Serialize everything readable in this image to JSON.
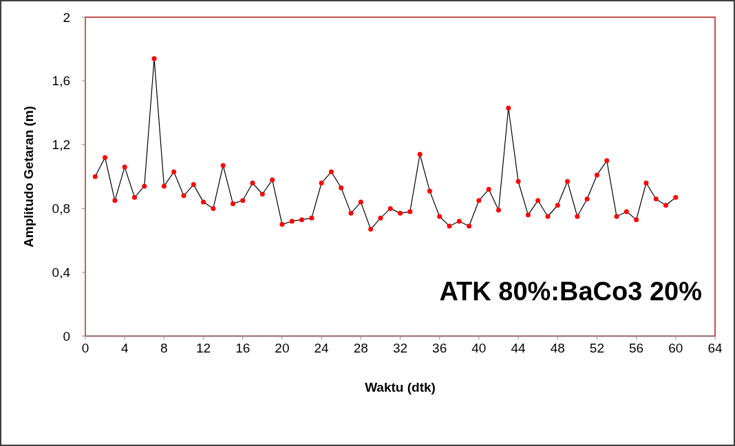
{
  "chart_data": {
    "type": "line",
    "xlabel": "Waktu (dtk)",
    "ylabel": "Amplitudo Getaran (m)",
    "annotations": [
      "ATK 80%:BaCo3 20%"
    ],
    "x": [
      1,
      2,
      3,
      4,
      5,
      6,
      7,
      8,
      9,
      10,
      11,
      12,
      13,
      14,
      15,
      16,
      17,
      18,
      19,
      20,
      21,
      22,
      23,
      24,
      25,
      26,
      27,
      28,
      29,
      30,
      31,
      32,
      33,
      34,
      35,
      36,
      37,
      38,
      39,
      40,
      41,
      42,
      43,
      44,
      45,
      46,
      47,
      48,
      49,
      50,
      51,
      52,
      53,
      54,
      55,
      56,
      57,
      58,
      59,
      60
    ],
    "series": [
      {
        "color": "#ff0000",
        "values": [
          1.0,
          1.12,
          0.85,
          1.06,
          0.87,
          0.94,
          1.74,
          0.94,
          1.03,
          0.88,
          0.95,
          0.84,
          0.8,
          1.07,
          0.83,
          0.85,
          0.96,
          0.89,
          0.98,
          0.7,
          0.72,
          0.73,
          0.74,
          0.96,
          1.03,
          0.93,
          0.77,
          0.84,
          0.67,
          0.74,
          0.8,
          0.77,
          0.78,
          1.14,
          0.91,
          0.75,
          0.69,
          0.72,
          0.69,
          0.85,
          0.92,
          0.79,
          1.43,
          0.97,
          0.76,
          0.85,
          0.75,
          0.82,
          0.97,
          0.75,
          0.86,
          1.01,
          1.1,
          0.75,
          0.78,
          0.73,
          0.96,
          0.86,
          0.82,
          0.87
        ]
      }
    ],
    "xlim": [
      0,
      64
    ],
    "xticks": [
      0,
      4,
      8,
      12,
      16,
      20,
      24,
      28,
      32,
      36,
      40,
      44,
      48,
      52,
      56,
      60,
      64
    ],
    "ylim": [
      0,
      2
    ],
    "yticks": [
      0,
      {
        "value": 0.4,
        "label": "0,4"
      },
      {
        "value": 0.8,
        "label": "0,8"
      },
      {
        "value": 1.2,
        "label": "1,2"
      },
      {
        "value": 1.6,
        "label": "1,6"
      },
      2
    ],
    "grid": false,
    "marker": "circle",
    "line_style": "solid"
  }
}
